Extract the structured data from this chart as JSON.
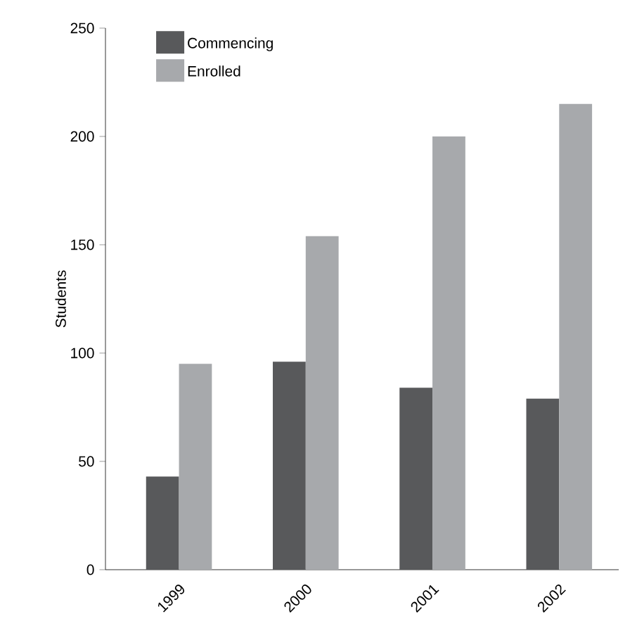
{
  "chart_data": {
    "type": "bar",
    "ylabel": "Students",
    "categories": [
      "1999",
      "2000",
      "2001",
      "2002"
    ],
    "series": [
      {
        "name": "Commencing",
        "color": "#58595b",
        "values": [
          43,
          96,
          84,
          79
        ]
      },
      {
        "name": "Enrolled",
        "color": "#a7a9ac",
        "values": [
          95,
          154,
          200,
          215
        ]
      }
    ],
    "ylim": [
      0,
      250
    ],
    "yticks": [
      0,
      50,
      100,
      150,
      200,
      250
    ],
    "grid": false,
    "legend": "top left"
  }
}
